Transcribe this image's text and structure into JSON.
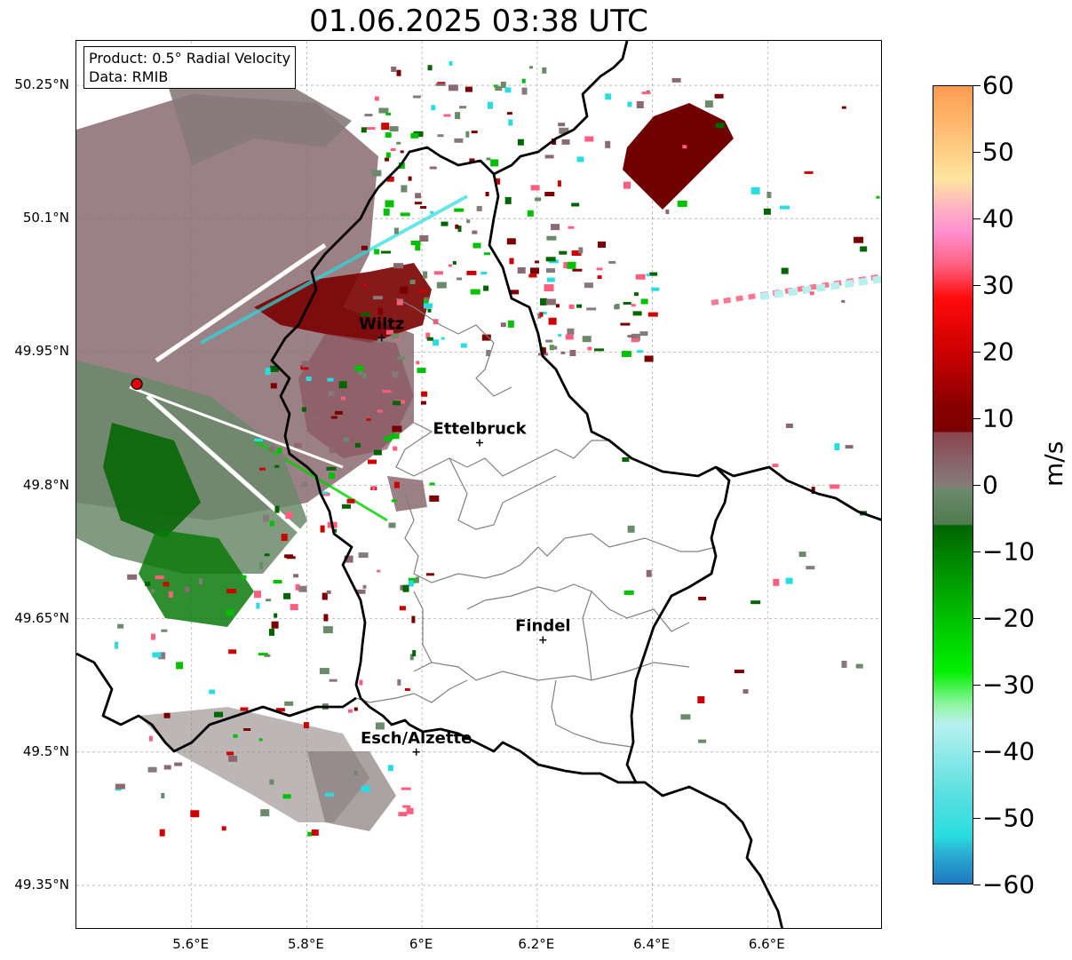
{
  "title": "01.06.2025 03:38 UTC",
  "info": {
    "product": "Product: 0.5° Radial Velocity",
    "source": "Data: RMIB"
  },
  "lat_labels": [
    "50.25°N",
    "50.1°N",
    "49.95°N",
    "49.8°N",
    "49.65°N",
    "49.5°N",
    "49.35°N"
  ],
  "lon_labels": [
    "5.6°E",
    "5.8°E",
    "6°E",
    "6.2°E",
    "6.4°E",
    "6.6°E"
  ],
  "cities": [
    {
      "name": "Wiltz",
      "lon": 5.93,
      "lat": 49.966
    },
    {
      "name": "Ettelbruck",
      "lon": 6.1,
      "lat": 49.848
    },
    {
      "name": "Findel",
      "lon": 6.21,
      "lat": 49.626
    },
    {
      "name": "Esch/Alzette",
      "lon": 5.99,
      "lat": 49.5
    }
  ],
  "radar_site": {
    "lon": 5.505,
    "lat": 49.914,
    "color": "#e00000"
  },
  "extent": {
    "lon": [
      5.4,
      6.8
    ],
    "lat": [
      49.3,
      50.3
    ]
  },
  "colorbar": {
    "unit": "m/s",
    "range": [
      -60,
      60
    ],
    "ticks": [
      "60",
      "50",
      "40",
      "30",
      "20",
      "10",
      "0",
      "−10",
      "−20",
      "−30",
      "−40",
      "−50",
      "−60"
    ],
    "tick_values": [
      60,
      50,
      40,
      30,
      20,
      10,
      0,
      -10,
      -20,
      -30,
      -40,
      -50,
      -60
    ],
    "stops": [
      {
        "v": 60,
        "c": "#ff9b50"
      },
      {
        "v": 50,
        "c": "#ffcf85"
      },
      {
        "v": 46,
        "c": "#ffe5a0"
      },
      {
        "v": 42,
        "c": "#ffb6c1"
      },
      {
        "v": 38,
        "c": "#ff8fd0"
      },
      {
        "v": 33,
        "c": "#ff5f7f"
      },
      {
        "v": 28,
        "c": "#ff0a0a"
      },
      {
        "v": 20,
        "c": "#cc0000"
      },
      {
        "v": 12,
        "c": "#8a0000"
      },
      {
        "v": 8,
        "c": "#7a0000"
      },
      {
        "v": 7.9,
        "c": "#8a4550"
      },
      {
        "v": 0,
        "c": "#877a7a"
      },
      {
        "v": -1,
        "c": "#6a8a6a"
      },
      {
        "v": -6,
        "c": "#4f7a4f"
      },
      {
        "v": -6.1,
        "c": "#006400"
      },
      {
        "v": -20,
        "c": "#00c000"
      },
      {
        "v": -28,
        "c": "#00f000"
      },
      {
        "v": -33,
        "c": "#8ef5a0"
      },
      {
        "v": -36,
        "c": "#b8f0f0"
      },
      {
        "v": -46,
        "c": "#5ee0e0"
      },
      {
        "v": -53,
        "c": "#28dce0"
      },
      {
        "v": -55,
        "c": "#2bb4d4"
      },
      {
        "v": -60,
        "c": "#1f78c0"
      }
    ]
  },
  "colors": {
    "border_country": "#000000",
    "border_canton": "#808080",
    "grid": "#b0b0b0",
    "velocity_dark_red": "#7a0000",
    "velocity_brown": "#8a6a70",
    "velocity_grey": "#877a7a",
    "velocity_green": "#006400",
    "velocity_grey_green": "#6a8a6a"
  }
}
